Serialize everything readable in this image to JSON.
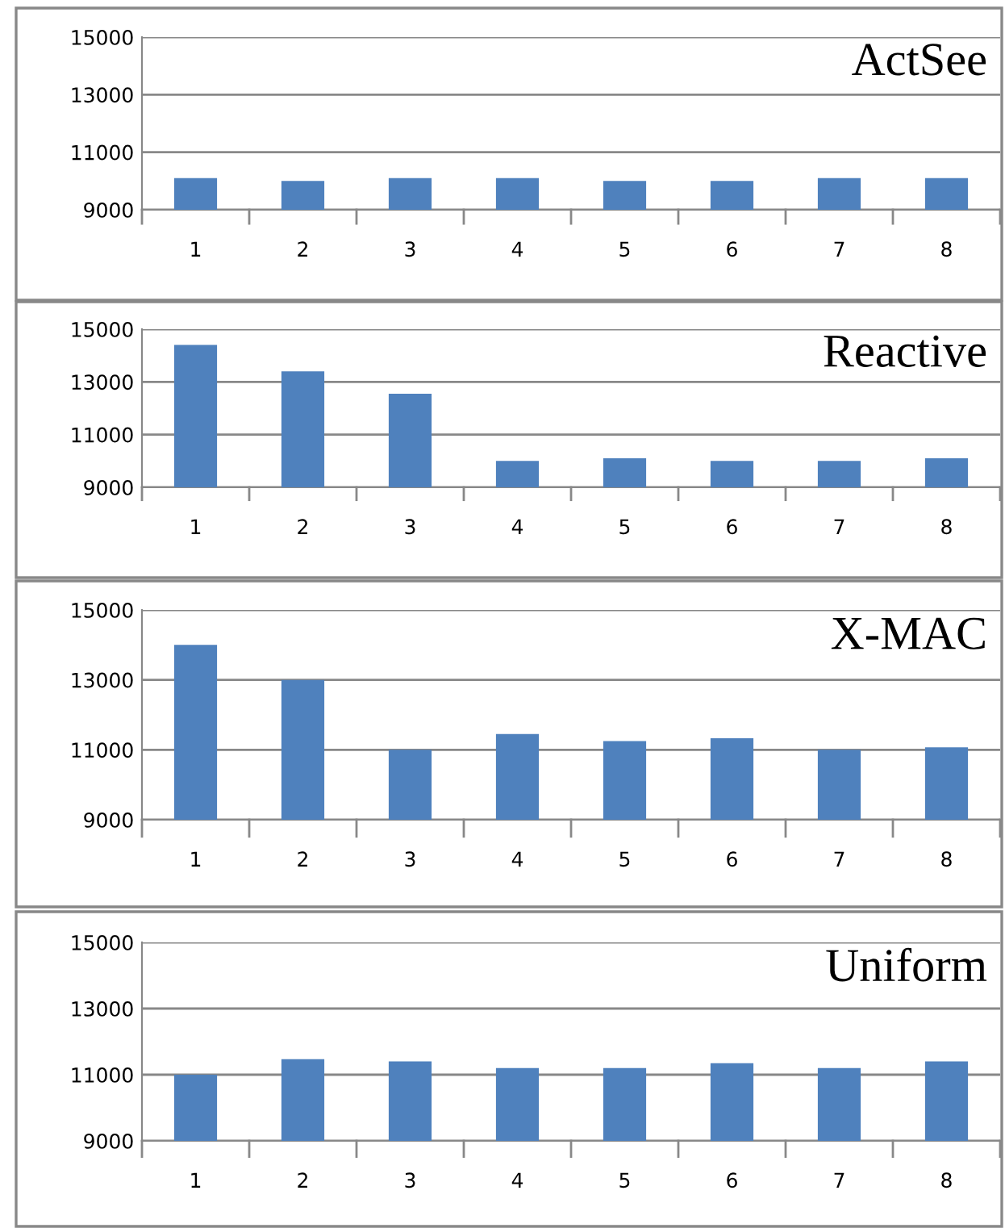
{
  "chart_data": [
    {
      "type": "bar",
      "title": "ActSee",
      "categories": [
        "1",
        "2",
        "3",
        "4",
        "5",
        "6",
        "7",
        "8"
      ],
      "values": [
        10100,
        10000,
        10100,
        10100,
        10000,
        10000,
        10100,
        10100
      ],
      "color": "#4f81bd",
      "ylim": [
        9000,
        15000
      ],
      "yticks": [
        9000,
        11000,
        13000,
        15000
      ],
      "grid": "y"
    },
    {
      "type": "bar",
      "title": "Reactive",
      "categories": [
        "1",
        "2",
        "3",
        "4",
        "5",
        "6",
        "7",
        "8"
      ],
      "values": [
        14400,
        13400,
        12550,
        10000,
        10100,
        10000,
        10000,
        10100
      ],
      "color": "#4f81bd",
      "ylim": [
        9000,
        15000
      ],
      "yticks": [
        9000,
        11000,
        13000,
        15000
      ],
      "grid": "y"
    },
    {
      "type": "bar",
      "title": "X-MAC",
      "categories": [
        "1",
        "2",
        "3",
        "4",
        "5",
        "6",
        "7",
        "8"
      ],
      "values": [
        14000,
        13000,
        11000,
        11450,
        11250,
        11330,
        11000,
        11070
      ],
      "color": "#4f81bd",
      "ylim": [
        9000,
        15000
      ],
      "yticks": [
        9000,
        11000,
        13000,
        15000
      ],
      "grid": "y"
    },
    {
      "type": "bar",
      "title": "Uniform",
      "categories": [
        "1",
        "2",
        "3",
        "4",
        "5",
        "6",
        "7",
        "8"
      ],
      "values": [
        11000,
        11470,
        11400,
        11200,
        11200,
        11350,
        11200,
        11400
      ],
      "color": "#4f81bd",
      "ylim": [
        9000,
        15000
      ],
      "yticks": [
        9000,
        11000,
        13000,
        15000
      ],
      "grid": "y"
    }
  ]
}
